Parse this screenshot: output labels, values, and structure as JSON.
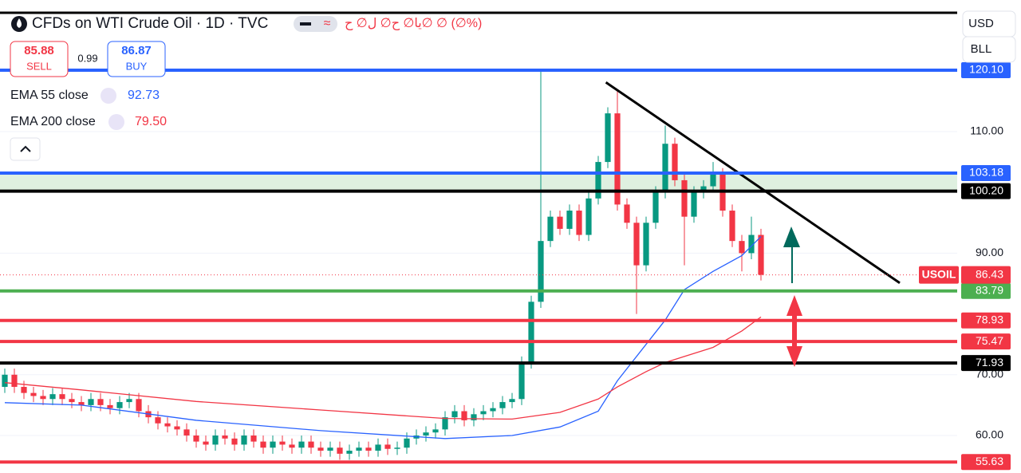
{
  "chart_data": {
    "type": "candlestick",
    "title": "CFDs on WTI Crude Oil · 1D · TVC",
    "ohlc_text": "يا∅ ح∅ ل∅ ح∅ ∅ (∅%)",
    "up_color": "#089981",
    "down_color": "#f23645",
    "xlim": [
      -0.5,
      99.5
    ],
    "ylim": [
      53.83,
      131.65
    ],
    "yticks": [
      {
        "value": 60,
        "label": "60.00"
      },
      {
        "value": 70,
        "label": "70.00"
      },
      {
        "value": 90,
        "label": "90.00"
      },
      {
        "value": 110,
        "label": "110.00"
      }
    ],
    "open": [
      68,
      70,
      68,
      67,
      66.5,
      66,
      66.8,
      66,
      65.5,
      65,
      66,
      65,
      64.5,
      65.5,
      66,
      64,
      63,
      62,
      61.5,
      61,
      60,
      59,
      58.5,
      60,
      59.5,
      58.5,
      60,
      59,
      58,
      59,
      58.5,
      58,
      59,
      58,
      57.5,
      58,
      57,
      57.5,
      58,
      57.5,
      58.5,
      57.8,
      58,
      59.5,
      60,
      60.5,
      61,
      63,
      64,
      62.5,
      63.5,
      64,
      64.5,
      65.5,
      66,
      72,
      82,
      92,
      96,
      94,
      97,
      93,
      99,
      105,
      113,
      98,
      95,
      88,
      95,
      100,
      108,
      102,
      96,
      100,
      101,
      103,
      97,
      92,
      90,
      93
    ],
    "high": [
      71,
      71,
      69,
      68,
      67.5,
      67.8,
      67.8,
      67,
      66.5,
      67,
      67,
      66,
      66.5,
      67,
      67,
      65,
      64,
      63,
      62.5,
      62,
      61,
      60,
      61,
      61,
      60.5,
      61,
      61,
      60,
      60,
      60,
      59.5,
      60,
      60,
      59,
      59,
      59,
      58.5,
      59,
      59,
      59.5,
      59.5,
      59,
      60.5,
      61,
      61.5,
      62,
      64,
      65,
      65,
      64.5,
      65,
      65.5,
      66.5,
      67,
      73,
      83,
      120,
      97,
      97,
      98,
      98,
      100,
      106,
      114,
      117,
      99,
      96,
      96,
      101,
      111,
      109,
      103,
      101,
      102,
      105,
      104,
      98,
      93,
      96,
      94
    ],
    "low": [
      67,
      67,
      66,
      65.5,
      65,
      65,
      65,
      64.5,
      64,
      64,
      64,
      63.5,
      63.5,
      64.5,
      63,
      62,
      61,
      60.5,
      60,
      59,
      58,
      57.5,
      57.5,
      58.5,
      57.5,
      57.5,
      58,
      57,
      57,
      57.5,
      57,
      57,
      57,
      56.5,
      56.5,
      56,
      56,
      56.5,
      56.5,
      56.5,
      56.8,
      56.8,
      57,
      58.5,
      59,
      59.5,
      60,
      62,
      61.5,
      61.5,
      62.5,
      63,
      63.5,
      64.5,
      65,
      71,
      81,
      91,
      93,
      93,
      92,
      92,
      98,
      104,
      97,
      94,
      80,
      87,
      94,
      99,
      101,
      88,
      95,
      99,
      100,
      96,
      91,
      87,
      89,
      85.5
    ],
    "close": [
      70,
      68,
      67,
      66.5,
      66,
      66.8,
      66,
      65.5,
      65,
      66,
      65,
      64.5,
      65.5,
      66,
      64,
      63,
      62,
      61.5,
      61,
      60,
      59,
      58.5,
      60,
      59.5,
      58.5,
      60,
      59,
      58,
      59,
      58.5,
      58,
      59,
      58,
      57.5,
      58,
      57,
      57.5,
      58,
      57.5,
      58.5,
      57.8,
      58,
      59.5,
      60,
      60.5,
      61,
      63,
      64,
      62.5,
      63.5,
      64,
      64.5,
      65.5,
      66,
      72,
      82,
      92,
      96,
      94,
      97,
      93,
      99,
      105,
      113,
      98,
      95,
      88,
      95,
      100,
      108,
      102,
      96,
      100,
      101,
      103,
      97,
      92,
      90,
      93,
      86.43
    ],
    "series": [
      {
        "name": "EMA 55 close",
        "color": "#2962ff",
        "x": [
          0,
          8,
          20,
          33,
          46,
          53,
          58,
          62,
          64,
          67,
          69,
          71,
          74,
          77,
          79
        ],
        "values": [
          65.4,
          65,
          62.5,
          60.8,
          59.5,
          60,
          61.4,
          64,
          69,
          75,
          79,
          84,
          87,
          89.6,
          92.73
        ]
      },
      {
        "name": "EMA 200 close",
        "color": "#f23645",
        "last_label": "79.50",
        "x": [
          0,
          8,
          20,
          33,
          46,
          53,
          58,
          62,
          64,
          67,
          69,
          71,
          74,
          77,
          79
        ],
        "values": [
          68.7,
          67.5,
          65.6,
          64.2,
          62.8,
          62.7,
          63.8,
          66,
          68,
          70.5,
          72,
          73,
          74.5,
          77.2,
          79.5
        ]
      }
    ],
    "levels": [
      {
        "value": 120.1,
        "label": "120.10",
        "color": "#2962ff"
      },
      {
        "value": 103.18,
        "label": "103.18",
        "color": "#2962ff"
      },
      {
        "value": 100.2,
        "label": "100.20",
        "color": "#000000"
      },
      {
        "value": 83.79,
        "label": "83.79",
        "color": "#4caf50"
      },
      {
        "value": 78.93,
        "label": "78.93",
        "color": "#f23645"
      },
      {
        "value": 75.47,
        "label": "75.47",
        "color": "#f23645"
      },
      {
        "value": 71.93,
        "label": "71.93",
        "color": "#000000"
      },
      {
        "value": 55.63,
        "label": "55.63",
        "color": "#f23645"
      }
    ],
    "trendline": {
      "x": [
        62.8,
        93.5
      ],
      "values": [
        118.1,
        85.1
      ],
      "color": "#000000"
    },
    "symbol_tag": "USOIL",
    "trade": {
      "sell_price": 85.88,
      "sell_label": "SELL",
      "spread": 0.99,
      "buy_price": 86.87,
      "buy_label": "BUY"
    }
  },
  "toolbar": {
    "currency": "USD",
    "unit": "BLL"
  }
}
